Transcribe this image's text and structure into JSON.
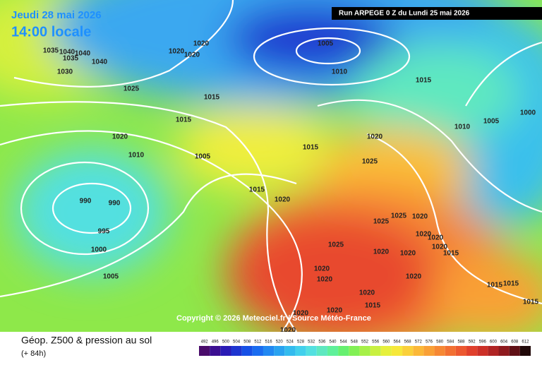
{
  "header": {
    "date": "Jeudi 28 mai 2026",
    "time": "14:00 locale",
    "run": "Run ARPEGE 0 Z du Lundi 25 mai 2026"
  },
  "copyright": "Copyright © 2026 Meteociel.fr / Source Météo-France",
  "footer": {
    "title": "Géop. Z500 & pression au sol",
    "lead": "(+ 84h)"
  },
  "scale": {
    "values": [
      492,
      496,
      500,
      504,
      508,
      512,
      516,
      520,
      524,
      528,
      532,
      536,
      540,
      544,
      548,
      552,
      556,
      560,
      564,
      568,
      572,
      576,
      580,
      584,
      588,
      592,
      596,
      600,
      604,
      608,
      612
    ],
    "colors": [
      "#4a0c6b",
      "#3b0f91",
      "#2a1bb5",
      "#1e35d0",
      "#1650e6",
      "#1a6cf0",
      "#2188f2",
      "#29a2f0",
      "#33bbee",
      "#42d0ec",
      "#53e0e0",
      "#5ee8c0",
      "#5ff09a",
      "#66f070",
      "#82f055",
      "#a6f048",
      "#c8f040",
      "#e6f03c",
      "#f6e83a",
      "#fad03a",
      "#fbb838",
      "#f9a036",
      "#f68834",
      "#f27032",
      "#ec5830",
      "#e0402c",
      "#cc3028",
      "#b02424",
      "#8e1a1e",
      "#601016",
      "#200808"
    ]
  },
  "isobar_labels": [
    1035,
    1040,
    1040,
    1035,
    1030,
    1040,
    1025,
    1020,
    1020,
    1020,
    1015,
    1015,
    1020,
    1010,
    1005,
    990,
    990,
    995,
    1000,
    1005,
    1015,
    1020,
    1015,
    1005,
    1010,
    1015,
    1020,
    1025,
    1010,
    1005,
    1000,
    1025,
    1020,
    1025,
    1025,
    1020,
    1020,
    1020,
    1020,
    1020,
    1015,
    1020,
    1020,
    1020,
    1015,
    1015,
    1020,
    1015,
    1020,
    1020,
    1015,
    1020
  ]
}
